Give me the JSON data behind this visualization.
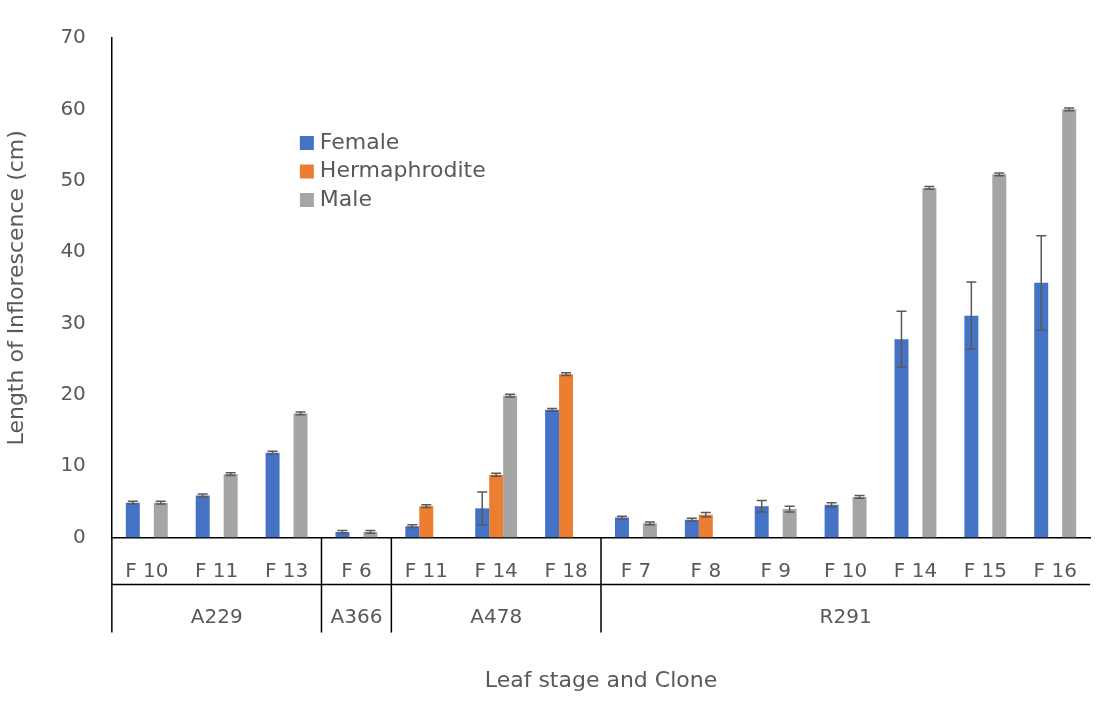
{
  "chart_data": {
    "type": "bar",
    "xlabel": "Leaf stage and Clone",
    "ylabel": "Length of Inflorescence (cm)",
    "categories": [
      "F 10",
      "F 11",
      "F 13",
      "F 6",
      "F 11",
      "F 14",
      "F 18",
      "F 7",
      "F 8",
      "F 9",
      "F 10",
      "F 14",
      "F 15",
      "F 16"
    ],
    "series": [
      {
        "name": "Female",
        "color": "#4472c4",
        "values": [
          4.9,
          5.9,
          11.9,
          0.8,
          1.6,
          4.1,
          17.9,
          2.8,
          2.5,
          4.4,
          4.6,
          27.8,
          31.1,
          35.7
        ],
        "errors": [
          0.2,
          0.2,
          0.2,
          0.2,
          0.2,
          2.3,
          0.2,
          0.2,
          0.2,
          0.8,
          0.3,
          3.9,
          4.7,
          6.6
        ]
      },
      {
        "name": "Hermaphrodite",
        "color": "#ed7d31",
        "values": [
          null,
          null,
          null,
          null,
          4.4,
          8.8,
          22.9,
          null,
          3.2,
          null,
          null,
          null,
          null,
          null
        ],
        "errors": [
          null,
          null,
          null,
          null,
          0.2,
          0.2,
          0.2,
          null,
          0.3,
          null,
          null,
          null,
          null,
          null
        ]
      },
      {
        "name": "Male",
        "color": "#a5a5a5",
        "values": [
          4.9,
          8.9,
          17.4,
          0.8,
          null,
          19.9,
          null,
          2.0,
          null,
          4.0,
          5.7,
          49.0,
          50.9,
          60.0
        ],
        "errors": [
          0.2,
          0.2,
          0.2,
          0.2,
          null,
          0.2,
          null,
          0.2,
          null,
          0.4,
          0.2,
          0.2,
          0.2,
          0.2
        ]
      }
    ],
    "annotations": [
      "A229",
      "A366",
      "A478",
      "R291"
    ],
    "ylim": [
      0,
      70
    ],
    "yticks": [
      0,
      10,
      20,
      30,
      40,
      50,
      60,
      70
    ],
    "legend": "top left",
    "grid": false
  }
}
